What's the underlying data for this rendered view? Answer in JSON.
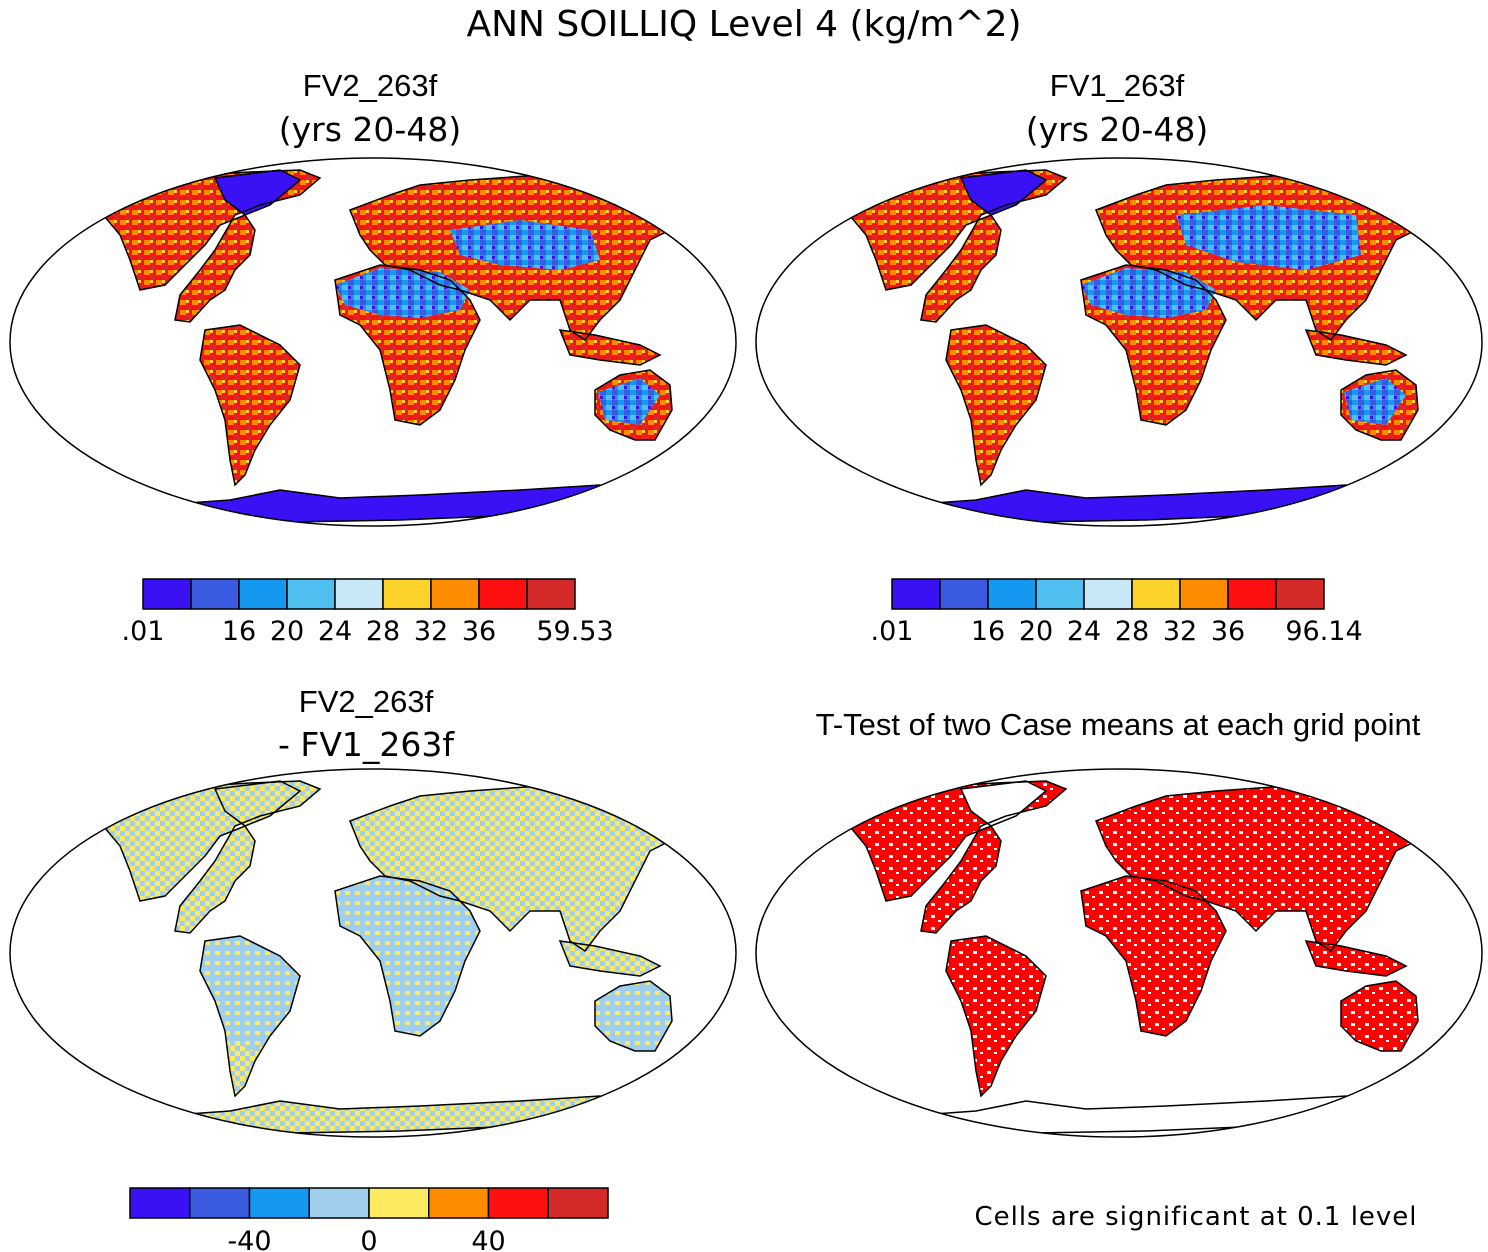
{
  "figure": {
    "title": "ANN SOILLIQ Level 4 (kg/m^2)"
  },
  "panels": [
    {
      "id": "p1",
      "title": "FV2_263f",
      "subtitle": "(yrs 20-48)"
    },
    {
      "id": "p2",
      "title": "FV1_263f",
      "subtitle": "(yrs 20-48)"
    },
    {
      "id": "p3",
      "title": "FV2_263f",
      "subtitle": "- FV1_263f"
    },
    {
      "id": "p4",
      "title": "T-Test of two Case means at each grid point",
      "note": "Cells are significant at 0.1 level"
    }
  ],
  "colorbars": [
    {
      "id": "cb1",
      "colors": [
        "#3a10f5",
        "#3a5ae0",
        "#1598f0",
        "#4fbff0",
        "#c8e8f8",
        "#fdd22a",
        "#fe8c00",
        "#fe1010",
        "#d52a2a"
      ],
      "ticks": [
        ".01",
        "16",
        "20",
        "24",
        "28",
        "32",
        "36",
        "59.53"
      ],
      "tick_bounds": [
        0,
        2,
        3,
        4,
        5,
        6,
        7,
        9
      ]
    },
    {
      "id": "cb2",
      "colors": [
        "#3a10f5",
        "#3a5ae0",
        "#1598f0",
        "#4fbff0",
        "#c8e8f8",
        "#fdd22a",
        "#fe8c00",
        "#fe1010",
        "#d52a2a"
      ],
      "ticks": [
        ".01",
        "16",
        "20",
        "24",
        "28",
        "32",
        "36",
        "96.14"
      ],
      "tick_bounds": [
        0,
        2,
        3,
        4,
        5,
        6,
        7,
        9
      ]
    },
    {
      "id": "cb3",
      "colors": [
        "#3a10f5",
        "#3a5ae0",
        "#1598f0",
        "#9fcfec",
        "#fdea60",
        "#fe8c00",
        "#fe1010",
        "#d52a2a"
      ],
      "ticks": [
        "-40",
        "0",
        "40"
      ],
      "tick_bounds": [
        2,
        4,
        6
      ]
    }
  ]
}
